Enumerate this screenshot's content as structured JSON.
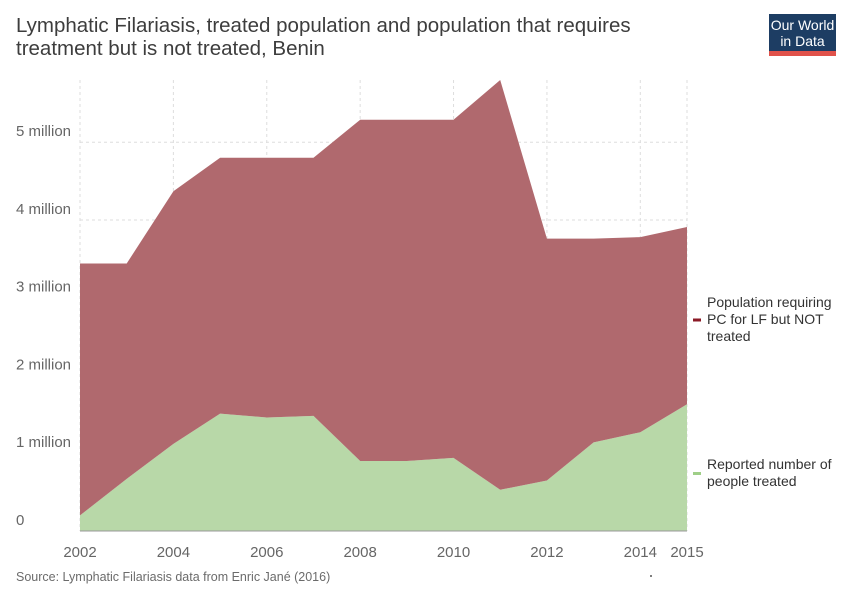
{
  "header": {
    "title_line1": "Lymphatic Filariasis, treated population and population that requires",
    "title_line2": "treatment but is not treated, Benin",
    "logo_line1": "Our World",
    "logo_line2": "in Data"
  },
  "footer": {
    "source": "Source: Lymphatic Filariasis data from Enric Jané (2016)"
  },
  "chart_data": {
    "type": "area",
    "stacked": true,
    "x": [
      2002,
      2003,
      2004,
      2005,
      2006,
      2007,
      2008,
      2009,
      2010,
      2011,
      2012,
      2013,
      2014,
      2015
    ],
    "xlim": [
      2002,
      2015
    ],
    "ylim": [
      0,
      5800000
    ],
    "x_ticks": [
      2002,
      2004,
      2006,
      2008,
      2010,
      2012,
      2014,
      2015
    ],
    "y_ticks": [
      {
        "value": 0,
        "label": "0"
      },
      {
        "value": 1000000,
        "label": "1 million"
      },
      {
        "value": 2000000,
        "label": "2 million"
      },
      {
        "value": 3000000,
        "label": "3 million"
      },
      {
        "value": 4000000,
        "label": "4 million"
      },
      {
        "value": 5000000,
        "label": "5 million"
      }
    ],
    "grid": true,
    "legend_position": "right",
    "series": [
      {
        "name": "Reported number of people treated",
        "color": "#b8d8a8",
        "legend_color": "#9fcf88",
        "values": [
          200000,
          670000,
          1120000,
          1510000,
          1460000,
          1480000,
          900000,
          900000,
          940000,
          530000,
          650000,
          1140000,
          1270000,
          1630000
        ]
      },
      {
        "name": "Population requiring PC for LF but NOT treated",
        "color": "#b0696e",
        "legend_color": "#8b1a26",
        "values": [
          3240000,
          2770000,
          3250000,
          3290000,
          3340000,
          3320000,
          4390000,
          4390000,
          4350000,
          5270000,
          3110000,
          2620000,
          2510000,
          2280000
        ]
      }
    ],
    "legend_labels": [
      [
        "Population requiring",
        "PC for LF but NOT",
        "treated"
      ],
      [
        "Reported number of",
        "people treated"
      ]
    ]
  }
}
